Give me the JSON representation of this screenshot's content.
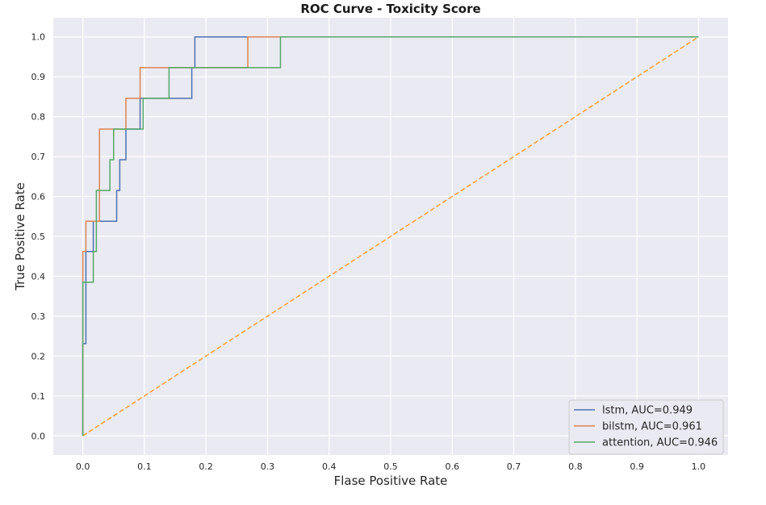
{
  "chart_data": {
    "type": "line",
    "title": "ROC Curve - Toxicity Score",
    "xlabel": "Flase Positive Rate",
    "ylabel": "True Positive Rate",
    "xlim": [
      -0.048,
      1.048
    ],
    "ylim": [
      -0.048,
      1.048
    ],
    "xticks": [
      "0.0",
      "0.1",
      "0.2",
      "0.3",
      "0.4",
      "0.5",
      "0.6",
      "0.7",
      "0.8",
      "0.9",
      "1.0"
    ],
    "yticks": [
      "0.0",
      "0.1",
      "0.2",
      "0.3",
      "0.4",
      "0.5",
      "0.6",
      "0.7",
      "0.8",
      "0.9",
      "1.0"
    ],
    "grid": true,
    "legend_position": "lower-right",
    "background_color": "#eaeaf2",
    "series": [
      {
        "name": "lstm, AUC=0.949",
        "color": "#4c72b0",
        "style": "solid",
        "x": [
          0.0,
          0.0,
          0.005,
          0.005,
          0.017,
          0.017,
          0.055,
          0.055,
          0.06,
          0.06,
          0.07,
          0.07,
          0.093,
          0.093,
          0.177,
          0.177,
          0.182,
          0.182,
          1.0
        ],
        "y": [
          0.0,
          0.231,
          0.231,
          0.462,
          0.462,
          0.538,
          0.538,
          0.615,
          0.615,
          0.692,
          0.692,
          0.769,
          0.769,
          0.846,
          0.846,
          0.923,
          0.923,
          1.0,
          1.0
        ]
      },
      {
        "name": "bilstm, AUC=0.961",
        "color": "#dd8452",
        "style": "solid",
        "x": [
          0.0,
          0.0,
          0.005,
          0.005,
          0.027,
          0.027,
          0.07,
          0.07,
          0.093,
          0.093,
          0.268,
          0.268,
          1.0
        ],
        "y": [
          0.0,
          0.462,
          0.462,
          0.538,
          0.538,
          0.769,
          0.769,
          0.846,
          0.846,
          0.923,
          0.923,
          1.0,
          1.0
        ]
      },
      {
        "name": "attention, AUC=0.946",
        "color": "#55a868",
        "style": "solid",
        "x": [
          0.0,
          0.0,
          0.017,
          0.017,
          0.022,
          0.022,
          0.044,
          0.044,
          0.05,
          0.05,
          0.098,
          0.098,
          0.14,
          0.14,
          0.321,
          0.321,
          1.0
        ],
        "y": [
          0.0,
          0.385,
          0.385,
          0.462,
          0.462,
          0.615,
          0.615,
          0.692,
          0.692,
          0.769,
          0.769,
          0.846,
          0.846,
          0.923,
          0.923,
          1.0,
          1.0
        ]
      },
      {
        "name": "",
        "color": "#ffa230",
        "style": "dashed",
        "x": [
          0.0,
          1.0
        ],
        "y": [
          0.0,
          1.0
        ]
      }
    ]
  }
}
